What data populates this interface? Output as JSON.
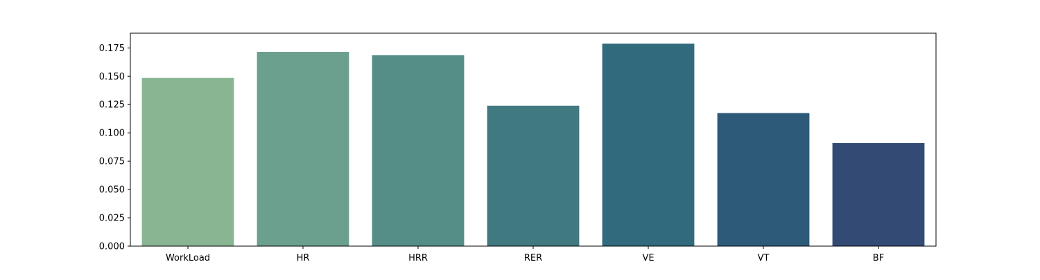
{
  "chart_data": {
    "type": "bar",
    "title": "",
    "xlabel": "",
    "ylabel": "",
    "categories": [
      "WorkLoad",
      "HR",
      "HRR",
      "RER",
      "VE",
      "VT",
      "BF"
    ],
    "values": [
      0.1485,
      0.1715,
      0.1685,
      0.124,
      0.1788,
      0.1175,
      0.091
    ],
    "colors": [
      "#8ab592",
      "#6aa08d",
      "#548e86",
      "#40797f",
      "#326a7d",
      "#2d5a78",
      "#334b74"
    ],
    "ylim": [
      0,
      0.188
    ],
    "yticks": [
      "0.000",
      "0.025",
      "0.050",
      "0.075",
      "0.100",
      "0.125",
      "0.150",
      "0.175"
    ],
    "grid": false,
    "legend": "none"
  }
}
